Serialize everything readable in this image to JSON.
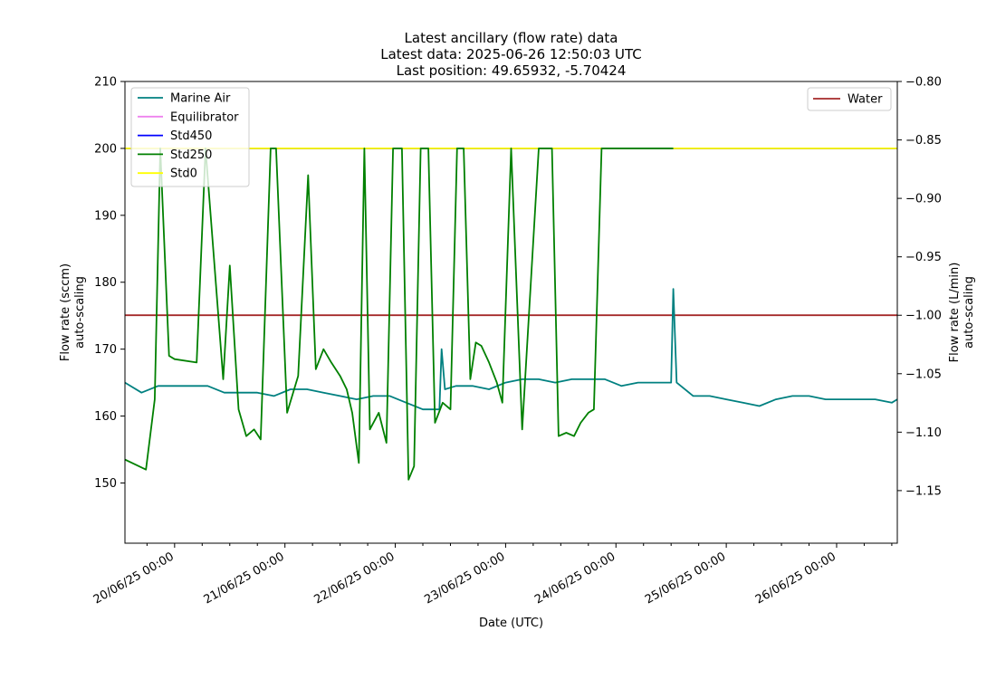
{
  "chart_data": {
    "type": "line",
    "title": [
      "Latest ancillary (flow rate) data",
      "Latest data: 2025-06-26 12:50:03 UTC",
      "Last position: 49.65932, -5.70424"
    ],
    "xlabel": "Date (UTC)",
    "ylabel_left": [
      "Flow rate (sccm)",
      "auto-scaling"
    ],
    "ylabel_right": [
      "Flow rate (L/min)",
      "auto-scaling"
    ],
    "xlim": [
      19.55,
      26.55
    ],
    "ylim_left": [
      141,
      210
    ],
    "ylim_right": [
      -1.195,
      -0.8
    ],
    "x_ticks": [
      {
        "value": 20,
        "label": "20/06/25 00:00"
      },
      {
        "value": 21,
        "label": "21/06/25 00:00"
      },
      {
        "value": 22,
        "label": "22/06/25 00:00"
      },
      {
        "value": 23,
        "label": "23/06/25 00:00"
      },
      {
        "value": 24,
        "label": "24/06/25 00:00"
      },
      {
        "value": 25,
        "label": "25/06/25 00:00"
      },
      {
        "value": 26,
        "label": "26/06/25 00:00"
      }
    ],
    "y_ticks_left": [
      150,
      160,
      170,
      180,
      190,
      200,
      210
    ],
    "y_ticks_right": [
      {
        "value": -1.15,
        "label": "−1.15"
      },
      {
        "value": -1.1,
        "label": "−1.10"
      },
      {
        "value": -1.05,
        "label": "−1.05"
      },
      {
        "value": -1.0,
        "label": "−1.00"
      },
      {
        "value": -0.95,
        "label": "−0.95"
      },
      {
        "value": -0.9,
        "label": "−0.90"
      },
      {
        "value": -0.85,
        "label": "−0.85"
      },
      {
        "value": -0.8,
        "label": "−0.80"
      }
    ],
    "legend_left": {
      "placement": "top-left",
      "entries": [
        "Marine Air",
        "Equilibrator",
        "Std450",
        "Std250",
        "Std0"
      ]
    },
    "legend_right": {
      "placement": "top-right",
      "entries": [
        "Water"
      ]
    },
    "series": [
      {
        "name": "Marine Air",
        "axis": "left",
        "color": "#008080",
        "x": [
          19.55,
          19.7,
          19.85,
          20.0,
          20.15,
          20.3,
          20.45,
          20.6,
          20.75,
          20.9,
          21.05,
          21.2,
          21.35,
          21.5,
          21.65,
          21.8,
          21.95,
          22.1,
          22.25,
          22.4,
          22.42,
          22.45,
          22.55,
          22.7,
          22.85,
          23.0,
          23.15,
          23.3,
          23.45,
          23.6,
          23.75,
          23.9,
          24.05,
          24.2,
          24.35,
          24.5,
          24.52,
          24.55,
          24.7,
          24.85,
          25.0,
          25.15,
          25.3,
          25.45,
          25.6,
          25.75,
          25.9,
          26.05,
          26.2,
          26.35,
          26.5,
          26.55
        ],
        "y": [
          165,
          163.5,
          164.5,
          164.5,
          164.5,
          164.5,
          163.5,
          163.5,
          163.5,
          163,
          164,
          164,
          163.5,
          163,
          162.5,
          163,
          163,
          162,
          161,
          161,
          170,
          164,
          164.5,
          164.5,
          164,
          165,
          165.5,
          165.5,
          165,
          165.5,
          165.5,
          165.5,
          164.5,
          165,
          165,
          165,
          179,
          165,
          163,
          163,
          162.5,
          162,
          161.5,
          162.5,
          163,
          163,
          162.5,
          162.5,
          162.5,
          162.5,
          162,
          162.5
        ]
      },
      {
        "name": "Equilibrator",
        "axis": "left",
        "color": "#ee82ee",
        "x": [
          19.55,
          26.55
        ],
        "y": [
          200,
          200
        ]
      },
      {
        "name": "Std450",
        "axis": "left",
        "color": "#0000ff",
        "x": [
          19.55,
          26.55
        ],
        "y": [
          200,
          200
        ]
      },
      {
        "name": "Std250",
        "axis": "left",
        "color": "#008000",
        "x": [
          19.55,
          19.74,
          19.82,
          19.87,
          19.95,
          20.0,
          20.2,
          20.28,
          20.44,
          20.5,
          20.58,
          20.65,
          20.72,
          20.78,
          20.87,
          20.92,
          21.02,
          21.12,
          21.21,
          21.28,
          21.35,
          21.42,
          21.5,
          21.56,
          21.61,
          21.67,
          21.72,
          21.77,
          21.85,
          21.92,
          21.98,
          22.06,
          22.12,
          22.17,
          22.23,
          22.3,
          22.36,
          22.43,
          22.5,
          22.56,
          22.62,
          22.68,
          22.73,
          22.78,
          22.85,
          22.92,
          22.97,
          23.05,
          23.15,
          23.3,
          23.42,
          23.48,
          23.55,
          23.62,
          23.68,
          23.75,
          23.8,
          23.87,
          23.92,
          23.98,
          24.05,
          24.1,
          24.18,
          24.25,
          24.3,
          24.35,
          24.4,
          24.45,
          24.52
        ],
        "y": [
          153.5,
          152,
          162.5,
          200,
          169,
          168.5,
          168,
          200,
          165.5,
          182.5,
          161,
          157,
          158,
          156.5,
          200,
          200,
          160.5,
          166,
          196,
          167,
          170,
          168,
          166,
          164,
          160.5,
          153,
          200,
          158,
          160.5,
          156,
          200,
          200,
          150.5,
          152.5,
          200,
          200,
          159,
          162,
          161,
          200,
          200,
          165.5,
          171,
          170.5,
          168,
          165,
          162,
          200,
          158,
          200,
          200,
          157,
          157.5,
          157,
          159,
          160.5,
          161,
          200,
          200,
          200,
          200,
          200,
          200,
          200,
          200,
          200,
          200,
          200,
          200
        ]
      },
      {
        "name": "Std0",
        "axis": "left",
        "color": "#ffff00",
        "x": [
          19.55,
          26.55
        ],
        "y": [
          200,
          200
        ]
      },
      {
        "name": "Water",
        "axis": "right",
        "color": "#a52a2a",
        "x": [
          19.55,
          26.55
        ],
        "y": [
          -1.0,
          -1.0
        ]
      }
    ]
  }
}
